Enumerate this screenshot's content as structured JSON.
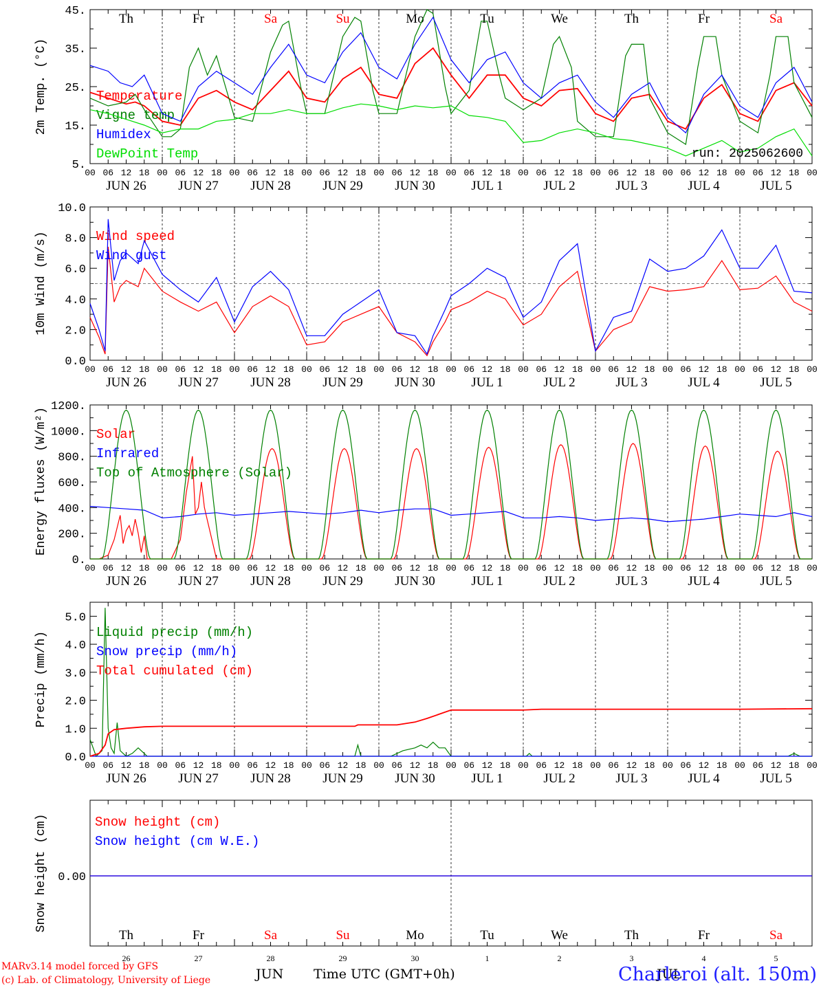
{
  "run_label": "run: 2025062600",
  "footer": {
    "model_line": "MARv3.14 model forced by GFS",
    "credit_line": "(c) Lab. of Climatology, University of Liege",
    "x_title": "Time UTC (GMT+0h)",
    "month_jun": "JUN",
    "month_jul": "JUL",
    "station": "Charleroi (alt. 150m)"
  },
  "weekdays": [
    "Th",
    "Fr",
    "Sa",
    "Su",
    "Mo",
    "Tu",
    "We",
    "Th",
    "Fr",
    "Sa"
  ],
  "weekday_colors": [
    "#000000",
    "#000000",
    "#ff0000",
    "#ff0000",
    "#000000",
    "#000000",
    "#000000",
    "#000000",
    "#000000",
    "#ff0000"
  ],
  "date_labels": [
    "JUN 26",
    "JUN 27",
    "JUN 28",
    "JUN 29",
    "JUN 30",
    "JUL  1",
    "JUL  2",
    "JUL  3",
    "JUL  4",
    "JUL  5"
  ],
  "bottom_day_numbers": [
    "26",
    "27",
    "28",
    "29",
    "30",
    "1",
    "2",
    "3",
    "4",
    "5"
  ],
  "hour_ticks": [
    "00",
    "06",
    "12",
    "18"
  ],
  "hour_end": "00",
  "colors": {
    "red": "#ff0000",
    "green": "#008000",
    "blue": "#0000ff",
    "lightgreen": "#00dd00"
  },
  "chart_data": [
    {
      "type": "line",
      "ylabel": "2m Temp. (°C)",
      "ylim": [
        5,
        45
      ],
      "yticks": [
        "5.",
        "15.",
        "25.",
        "35.",
        "45."
      ],
      "x_unit": "hours since JUN 26 00 UTC",
      "xlim": [
        0,
        240
      ],
      "series": [
        {
          "name": "Temperature",
          "color": "#ff0000",
          "x": [
            0,
            6,
            12,
            15,
            18,
            24,
            30,
            36,
            42,
            48,
            54,
            60,
            66,
            72,
            78,
            84,
            90,
            96,
            102,
            108,
            114,
            120,
            126,
            132,
            138,
            144,
            150,
            156,
            162,
            168,
            174,
            180,
            186,
            192,
            198,
            204,
            210,
            216,
            222,
            228,
            234,
            240
          ],
          "y": [
            23.5,
            22,
            20.5,
            21,
            20,
            16,
            15,
            22,
            24,
            21,
            19,
            24,
            29,
            22,
            21,
            27,
            30,
            23,
            22,
            31,
            35,
            28,
            22,
            28,
            28,
            22,
            20,
            24,
            24.5,
            18,
            16,
            22,
            23,
            16,
            14,
            22,
            25.5,
            18,
            16,
            24,
            26,
            20
          ]
        },
        {
          "name": "Vigne temp",
          "color": "#008000",
          "x": [
            0,
            6,
            12,
            15,
            18,
            24,
            27,
            30,
            33,
            36,
            39,
            42,
            48,
            54,
            60,
            64,
            66,
            70,
            72,
            78,
            84,
            88,
            90,
            94,
            96,
            102,
            108,
            112,
            114,
            118,
            120,
            126,
            130,
            132,
            136,
            138,
            144,
            150,
            154,
            156,
            160,
            162,
            168,
            174,
            178,
            180,
            184,
            186,
            192,
            198,
            202,
            204,
            208,
            210,
            216,
            222,
            226,
            228,
            232,
            234,
            240
          ],
          "y": [
            22,
            20,
            21,
            23,
            19,
            12,
            12,
            14,
            30,
            35,
            28,
            33,
            17,
            16,
            34,
            41,
            42,
            25,
            18,
            18,
            38,
            43,
            42,
            24,
            18,
            18,
            38,
            45,
            44,
            25,
            18,
            24,
            42,
            42,
            28,
            22,
            19,
            22,
            36,
            38,
            30,
            16,
            12,
            12,
            33,
            36,
            36,
            22,
            13,
            10,
            30,
            38,
            38,
            28,
            16,
            13,
            28,
            38,
            38,
            26,
            17
          ]
        },
        {
          "name": "Humidex",
          "color": "#0000ff",
          "x": [
            0,
            6,
            10,
            14,
            18,
            24,
            30,
            36,
            42,
            48,
            54,
            60,
            66,
            72,
            78,
            84,
            90,
            96,
            102,
            108,
            114,
            120,
            126,
            132,
            138,
            144,
            150,
            156,
            162,
            168,
            174,
            180,
            186,
            192,
            198,
            204,
            210,
            216,
            222,
            228,
            234,
            240
          ],
          "y": [
            30.5,
            29,
            26,
            25,
            28,
            18,
            16,
            25,
            29,
            26,
            23,
            30,
            36,
            28,
            26,
            34,
            39,
            30,
            27,
            36,
            43,
            32,
            26,
            32,
            34,
            26,
            22,
            26,
            28,
            21,
            17,
            23,
            26,
            17,
            13,
            23,
            28,
            20,
            17,
            26,
            30,
            21
          ]
        },
        {
          "name": "DewPoint Temp",
          "color": "#00dd00",
          "x": [
            0,
            6,
            12,
            18,
            24,
            30,
            36,
            42,
            48,
            54,
            60,
            66,
            72,
            78,
            84,
            90,
            96,
            102,
            108,
            114,
            120,
            126,
            132,
            138,
            144,
            150,
            156,
            162,
            168,
            174,
            180,
            186,
            192,
            198,
            204,
            210,
            216,
            222,
            228,
            234,
            240
          ],
          "y": [
            19,
            18,
            16.5,
            15,
            13,
            14,
            14,
            16,
            16.5,
            18,
            18,
            19,
            18,
            18,
            19.5,
            20.5,
            20,
            19,
            20,
            19.5,
            20,
            17.5,
            17,
            16,
            10.5,
            11,
            13,
            14,
            13,
            11.5,
            11,
            10,
            9,
            7,
            9,
            11,
            8,
            9,
            12,
            14,
            7
          ]
        }
      ]
    },
    {
      "type": "line",
      "ylabel": "10m Wind (m/s)",
      "ylim": [
        0,
        10
      ],
      "yticks": [
        "0.0",
        "2.0",
        "4.0",
        "6.0",
        "8.0",
        "10.0"
      ],
      "reference_line": 5.0,
      "xlim": [
        0,
        240
      ],
      "series": [
        {
          "name": "Wind speed",
          "color": "#ff0000",
          "x": [
            0,
            3,
            5,
            6,
            8,
            10,
            12,
            16,
            18,
            24,
            30,
            36,
            42,
            48,
            54,
            60,
            66,
            72,
            78,
            84,
            90,
            96,
            102,
            108,
            112,
            114,
            118,
            120,
            126,
            132,
            138,
            144,
            150,
            156,
            162,
            168,
            174,
            180,
            186,
            192,
            198,
            204,
            210,
            216,
            222,
            228,
            234,
            240
          ],
          "y": [
            2.8,
            1.5,
            0.4,
            7.4,
            3.8,
            4.8,
            5.2,
            4.8,
            6.0,
            4.5,
            3.8,
            3.2,
            3.8,
            1.8,
            3.5,
            4.2,
            3.5,
            1.0,
            1.2,
            2.5,
            3.0,
            3.5,
            1.8,
            1.2,
            0.3,
            1.2,
            2.5,
            3.3,
            3.8,
            4.5,
            4.0,
            2.3,
            3.0,
            4.8,
            5.8,
            0.6,
            2.0,
            2.5,
            4.8,
            4.5,
            4.6,
            4.8,
            6.5,
            4.6,
            4.7,
            5.5,
            3.8,
            3.2
          ]
        },
        {
          "name": "Wind gust",
          "color": "#0000ff",
          "x": [
            0,
            3,
            5,
            6,
            8,
            10,
            12,
            16,
            18,
            24,
            30,
            36,
            42,
            48,
            54,
            60,
            66,
            72,
            78,
            84,
            90,
            96,
            102,
            108,
            112,
            114,
            118,
            120,
            126,
            132,
            138,
            144,
            150,
            156,
            162,
            168,
            174,
            180,
            186,
            192,
            198,
            204,
            210,
            216,
            222,
            228,
            234,
            240
          ],
          "y": [
            3.7,
            2.0,
            0.6,
            9.2,
            5.2,
            6.5,
            7.0,
            6.3,
            7.8,
            5.6,
            4.6,
            3.8,
            5.4,
            2.5,
            4.8,
            5.8,
            4.6,
            1.6,
            1.6,
            3.0,
            3.8,
            4.6,
            1.8,
            1.6,
            0.4,
            1.6,
            3.3,
            4.2,
            5.0,
            6.0,
            5.4,
            2.8,
            3.8,
            6.5,
            7.6,
            0.6,
            2.8,
            3.2,
            6.6,
            5.8,
            6.0,
            6.8,
            8.5,
            6.0,
            6.0,
            7.5,
            4.5,
            4.4
          ]
        }
      ]
    },
    {
      "type": "line",
      "ylabel": "Energy fluxes (W/m²)",
      "ylim": [
        0,
        1200
      ],
      "yticks": [
        "0.",
        "200.",
        "400.",
        "600.",
        "800.",
        "1000.",
        "1200."
      ],
      "xlim": [
        0,
        240
      ],
      "series": [
        {
          "name": "Solar",
          "color": "#ff0000",
          "x": [
            0,
            3,
            6,
            8,
            10,
            11,
            12,
            13,
            14,
            15,
            16,
            17,
            18,
            19,
            20,
            21,
            24,
            27,
            30,
            32,
            34,
            35,
            36,
            37,
            38,
            39,
            40,
            41,
            42,
            44,
            45,
            48
          ],
          "y": [
            0,
            0,
            30,
            150,
            340,
            120,
            220,
            260,
            180,
            310,
            200,
            50,
            180,
            0,
            0,
            0,
            0,
            0,
            150,
            520,
            800,
            350,
            400,
            600,
            400,
            300,
            200,
            100,
            0,
            0,
            0,
            0
          ],
          "daily_peaks": [
            860,
            860,
            860,
            870,
            890,
            900,
            880,
            840
          ]
        },
        {
          "name": "Infrared",
          "color": "#0000ff",
          "x": [
            0,
            6,
            12,
            18,
            24,
            30,
            36,
            42,
            48,
            54,
            60,
            66,
            72,
            78,
            84,
            90,
            96,
            102,
            108,
            114,
            120,
            126,
            132,
            138,
            144,
            150,
            156,
            162,
            168,
            174,
            180,
            186,
            192,
            198,
            204,
            210,
            216,
            222,
            228,
            234,
            240
          ],
          "y": [
            410,
            400,
            390,
            380,
            320,
            330,
            350,
            360,
            340,
            350,
            360,
            370,
            360,
            350,
            360,
            380,
            360,
            380,
            390,
            390,
            340,
            350,
            360,
            370,
            320,
            320,
            330,
            320,
            300,
            310,
            320,
            310,
            290,
            300,
            310,
            330,
            350,
            340,
            330,
            360,
            330
          ]
        },
        {
          "name": "Top of Atmosphere (Solar)",
          "color": "#008000",
          "daily_peak": 1160
        }
      ]
    },
    {
      "type": "line",
      "ylabel": "Precip (mm/h)",
      "ylim": [
        0,
        5.5
      ],
      "yticks": [
        "0.0",
        "1.0",
        "2.0",
        "3.0",
        "4.0",
        "5.0"
      ],
      "xlim": [
        0,
        240
      ],
      "series": [
        {
          "name": "Liquid precip (mm/h)",
          "color": "#008000",
          "x": [
            0,
            2,
            3,
            4,
            5,
            6,
            7,
            8,
            9,
            10,
            11,
            12,
            14,
            16,
            17,
            18,
            19,
            20,
            88,
            89,
            90,
            91,
            92,
            100,
            104,
            108,
            110,
            112,
            114,
            116,
            118,
            120,
            145,
            146,
            147,
            209,
            210,
            232,
            234,
            236,
            240
          ],
          "y": [
            0.6,
            0,
            0.1,
            0.2,
            5.3,
            1.0,
            0.3,
            0.1,
            1.2,
            0.2,
            0.1,
            0,
            0.1,
            0.3,
            0.2,
            0.1,
            0,
            0,
            0,
            0.4,
            0,
            0,
            0,
            0,
            0.2,
            0.3,
            0.4,
            0.3,
            0.5,
            0.3,
            0.3,
            0,
            0,
            0.1,
            0,
            0,
            0,
            0,
            0.1,
            0,
            0
          ]
        },
        {
          "name": "Snow precip (mm/h)",
          "color": "#0000ff",
          "x": [
            0,
            240
          ],
          "y": [
            0,
            0
          ]
        },
        {
          "name": "Total cumulated (cm)",
          "color": "#ff0000",
          "x": [
            0,
            3,
            5,
            6,
            8,
            12,
            18,
            24,
            48,
            72,
            84,
            88,
            89,
            96,
            102,
            108,
            112,
            116,
            120,
            126,
            144,
            150,
            168,
            192,
            216,
            240
          ],
          "y": [
            0,
            0.1,
            0.4,
            0.8,
            0.95,
            1.0,
            1.05,
            1.07,
            1.07,
            1.07,
            1.07,
            1.07,
            1.12,
            1.12,
            1.12,
            1.22,
            1.35,
            1.5,
            1.65,
            1.65,
            1.65,
            1.68,
            1.68,
            1.68,
            1.68,
            1.7
          ]
        }
      ]
    },
    {
      "type": "line",
      "ylabel": "Snow height (cm)",
      "yticks": [
        "0.00"
      ],
      "xlim": [
        0,
        240
      ],
      "series": [
        {
          "name": "Snow height (cm)",
          "color": "#ff0000",
          "x": [
            0,
            240
          ],
          "y": [
            0,
            0
          ]
        },
        {
          "name": "Snow height (cm W.E.)",
          "color": "#0000ff",
          "x": [
            0,
            240
          ],
          "y": [
            0,
            0
          ]
        }
      ]
    }
  ]
}
